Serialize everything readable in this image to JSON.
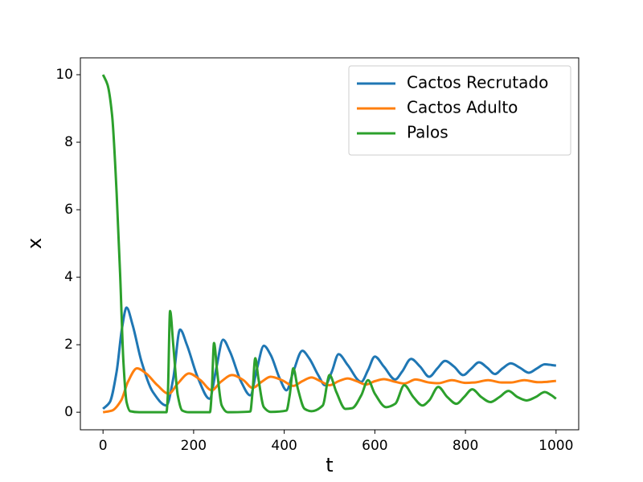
{
  "chart_data": {
    "type": "line",
    "xlabel": "t",
    "ylabel": "x",
    "xlim": [
      -50,
      1050
    ],
    "ylim": [
      -0.52,
      10.5
    ],
    "xticks": [
      0,
      200,
      400,
      600,
      800,
      1000
    ],
    "yticks": [
      0,
      2,
      4,
      6,
      8,
      10
    ],
    "legend": "upper right",
    "series": [
      {
        "name": "Cactos Recrutado",
        "color": "#1f77b4",
        "x": [
          0,
          15,
          30,
          42,
          52,
          65,
          85,
          110,
          140,
          155,
          170,
          185,
          210,
          235,
          250,
          265,
          280,
          305,
          325,
          340,
          355,
          370,
          390,
          405,
          420,
          440,
          455,
          475,
          490,
          505,
          520,
          540,
          570,
          585,
          600,
          620,
          645,
          660,
          680,
          700,
          720,
          738,
          755,
          775,
          795,
          812,
          830,
          848,
          865,
          882,
          900,
          920,
          940,
          958,
          975,
          990,
          1000
        ],
        "values": [
          0.1,
          0.3,
          1.2,
          2.5,
          3.1,
          2.6,
          1.5,
          0.6,
          0.2,
          1.0,
          2.45,
          2.0,
          1.0,
          0.4,
          1.3,
          2.15,
          1.8,
          0.9,
          0.5,
          1.3,
          1.97,
          1.7,
          1.0,
          0.65,
          1.2,
          1.82,
          1.6,
          1.1,
          0.8,
          1.2,
          1.72,
          1.4,
          0.9,
          1.25,
          1.65,
          1.35,
          0.97,
          1.2,
          1.58,
          1.35,
          1.05,
          1.3,
          1.52,
          1.35,
          1.1,
          1.28,
          1.48,
          1.32,
          1.13,
          1.3,
          1.45,
          1.32,
          1.17,
          1.3,
          1.42,
          1.4,
          1.38
        ]
      },
      {
        "name": "Cactos Adulto",
        "color": "#ff7f0e",
        "x": [
          0,
          20,
          40,
          55,
          75,
          95,
          120,
          145,
          165,
          190,
          215,
          240,
          260,
          285,
          310,
          330,
          350,
          370,
          395,
          420,
          440,
          460,
          480,
          500,
          520,
          540,
          560,
          580,
          600,
          620,
          645,
          665,
          690,
          720,
          740,
          770,
          800,
          820,
          850,
          880,
          900,
          930,
          960,
          980,
          1000
        ],
        "values": [
          0,
          0.05,
          0.35,
          0.9,
          1.3,
          1.15,
          0.8,
          0.55,
          0.85,
          1.15,
          0.95,
          0.65,
          0.9,
          1.1,
          0.95,
          0.72,
          0.9,
          1.05,
          0.95,
          0.78,
          0.92,
          1.03,
          0.92,
          0.8,
          0.92,
          1.0,
          0.92,
          0.82,
          0.92,
          0.98,
          0.9,
          0.85,
          0.97,
          0.88,
          0.86,
          0.95,
          0.87,
          0.88,
          0.95,
          0.88,
          0.88,
          0.95,
          0.89,
          0.9,
          0.93
        ]
      },
      {
        "name": "Palos",
        "color": "#2ca02c",
        "x": [
          0,
          10,
          20,
          30,
          38,
          45,
          52,
          60,
          80,
          140,
          143,
          148,
          155,
          165,
          175,
          190,
          236,
          240,
          245,
          252,
          262,
          275,
          325,
          330,
          336,
          343,
          355,
          370,
          405,
          412,
          420,
          430,
          445,
          460,
          485,
          500,
          515,
          535,
          550,
          570,
          585,
          600,
          625,
          645,
          665,
          685,
          705,
          720,
          740,
          760,
          780,
          797,
          815,
          835,
          855,
          875,
          895,
          915,
          935,
          955,
          975,
          990,
          1000
        ],
        "values": [
          10,
          9.7,
          8.8,
          6.5,
          4,
          1.5,
          0.3,
          0.03,
          0,
          0,
          0.5,
          3.0,
          2.0,
          0.5,
          0.05,
          0,
          0,
          0.6,
          2.05,
          1.2,
          0.2,
          0,
          0.02,
          0.6,
          1.6,
          1.0,
          0.15,
          0.01,
          0.05,
          0.5,
          1.3,
          0.7,
          0.1,
          0.03,
          0.2,
          1.1,
          0.6,
          0.1,
          0.12,
          0.5,
          0.95,
          0.55,
          0.15,
          0.25,
          0.8,
          0.45,
          0.2,
          0.35,
          0.75,
          0.45,
          0.25,
          0.45,
          0.68,
          0.45,
          0.3,
          0.45,
          0.63,
          0.45,
          0.35,
          0.45,
          0.6,
          0.5,
          0.4
        ]
      }
    ]
  }
}
